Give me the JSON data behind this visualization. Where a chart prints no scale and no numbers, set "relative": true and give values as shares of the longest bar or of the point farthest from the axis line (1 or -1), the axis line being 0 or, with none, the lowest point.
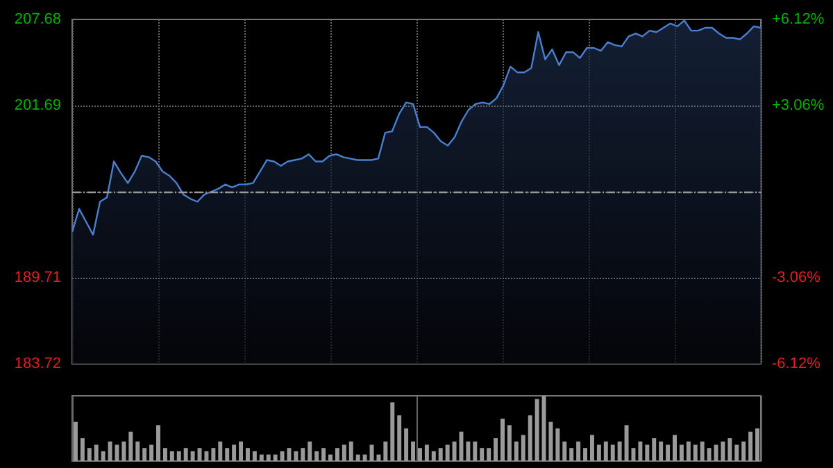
{
  "chart_data": [
    {
      "type": "area",
      "categories": [
        null,
        null,
        null,
        null,
        null,
        null,
        null,
        null,
        null,
        null,
        null,
        null,
        null,
        null,
        null,
        null,
        null,
        null,
        null,
        null,
        null,
        null,
        null,
        null,
        null,
        null,
        null,
        null,
        null,
        null,
        null,
        null,
        null,
        null,
        null,
        null,
        null,
        null,
        null,
        null,
        null,
        null,
        null,
        null,
        null,
        null,
        null,
        null,
        null,
        null,
        null,
        null,
        null,
        null,
        null,
        null,
        null,
        null,
        null,
        null,
        null,
        null,
        null,
        null,
        null,
        null,
        null,
        null,
        null,
        null,
        null,
        null,
        null,
        null,
        null,
        null,
        null,
        null,
        null,
        null,
        null,
        null,
        null,
        null,
        null,
        null,
        null,
        null,
        null,
        null,
        null,
        null,
        null,
        null,
        null,
        null,
        null,
        null,
        null,
        null
      ],
      "series": [
        {
          "color": "#4a7fd0",
          "values": [
            192.9,
            194.5,
            193.6,
            192.7,
            195.0,
            195.3,
            197.8,
            197.0,
            196.3,
            197.1,
            198.2,
            198.1,
            197.8,
            197.1,
            196.8,
            196.3,
            195.5,
            195.2,
            195.0,
            195.5,
            195.7,
            195.9,
            196.2,
            196.0,
            196.2,
            196.2,
            196.3,
            197.1,
            197.9,
            197.8,
            197.5,
            197.8,
            197.9,
            198.0,
            198.3,
            197.8,
            197.8,
            198.2,
            198.3,
            198.1,
            198.0,
            197.9,
            197.9,
            197.9,
            198.0,
            199.8,
            199.9,
            201.1,
            201.9,
            201.8,
            200.2,
            200.2,
            199.8,
            199.2,
            198.9,
            199.5,
            200.6,
            201.4,
            201.8,
            201.9,
            201.8,
            202.2,
            203.1,
            204.4,
            204.0,
            204.0,
            204.3,
            206.8,
            204.9,
            205.6,
            204.5,
            205.4,
            205.4,
            205.0,
            205.7,
            205.7,
            205.5,
            206.1,
            205.9,
            205.8,
            206.5,
            206.7,
            206.5,
            206.9,
            206.8,
            207.1,
            207.4,
            207.2,
            207.6,
            206.9,
            206.9,
            207.1,
            207.1,
            206.7,
            206.4,
            206.4,
            206.3,
            206.7,
            207.2,
            207.1
          ]
        }
      ],
      "ylim": [
        183.72,
        207.68
      ],
      "yticks": [
        183.72,
        189.71,
        {
          "value": 195.7,
          "label": null
        },
        201.69,
        207.68
      ],
      "y2lim": [
        -6.12,
        6.12
      ],
      "y2ticks": [
        {
          "value": -6.12,
          "label": "-6.12%"
        },
        {
          "value": -3.06,
          "label": "-3.06%"
        },
        {
          "value": 0,
          "label": null
        },
        {
          "value": 3.06,
          "label": "+3.06%"
        },
        {
          "value": 6.12,
          "label": "+6.12%"
        }
      ],
      "ref_lines": [
        {
          "axis": "y",
          "value": 195.7
        }
      ],
      "grid": true
    },
    {
      "type": "bar",
      "relative": true,
      "grid": "x",
      "categories": [
        null,
        null,
        null,
        null,
        null,
        null,
        null,
        null,
        null,
        null,
        null,
        null,
        null,
        null,
        null,
        null,
        null,
        null,
        null,
        null,
        null,
        null,
        null,
        null,
        null,
        null,
        null,
        null,
        null,
        null,
        null,
        null,
        null,
        null,
        null,
        null,
        null,
        null,
        null,
        null,
        null,
        null,
        null,
        null,
        null,
        null,
        null,
        null,
        null,
        null,
        null,
        null,
        null,
        null,
        null,
        null,
        null,
        null,
        null,
        null,
        null,
        null,
        null,
        null,
        null,
        null,
        null,
        null,
        null,
        null,
        null,
        null,
        null,
        null,
        null,
        null,
        null,
        null,
        null,
        null,
        null,
        null,
        null,
        null,
        null,
        null,
        null,
        null,
        null,
        null,
        null,
        null,
        null,
        null,
        null,
        null,
        null,
        null,
        null,
        null
      ],
      "series": [
        {
          "color": "#9a9a9a",
          "values": [
            0.6,
            0.35,
            0.2,
            0.25,
            0.15,
            0.3,
            0.25,
            0.3,
            0.45,
            0.3,
            0.2,
            0.25,
            0.55,
            0.2,
            0.15,
            0.15,
            0.2,
            0.15,
            0.2,
            0.15,
            0.2,
            0.3,
            0.2,
            0.25,
            0.3,
            0.2,
            0.15,
            0.1,
            0.1,
            0.1,
            0.15,
            0.2,
            0.15,
            0.2,
            0.3,
            0.15,
            0.2,
            0.1,
            0.2,
            0.25,
            0.3,
            0.1,
            0.1,
            0.25,
            0.1,
            0.3,
            0.9,
            0.7,
            0.5,
            0.3,
            0.2,
            0.25,
            0.15,
            0.2,
            0.25,
            0.3,
            0.45,
            0.3,
            0.3,
            0.2,
            0.2,
            0.35,
            0.65,
            0.55,
            0.3,
            0.4,
            0.7,
            0.95,
            1.0,
            0.6,
            0.5,
            0.3,
            0.2,
            0.3,
            0.2,
            0.4,
            0.25,
            0.3,
            0.25,
            0.3,
            0.55,
            0.2,
            0.3,
            0.25,
            0.35,
            0.3,
            0.25,
            0.4,
            0.25,
            0.3,
            0.25,
            0.3,
            0.2,
            0.25,
            0.3,
            0.35,
            0.25,
            0.3,
            0.45,
            0.5
          ]
        }
      ]
    }
  ]
}
